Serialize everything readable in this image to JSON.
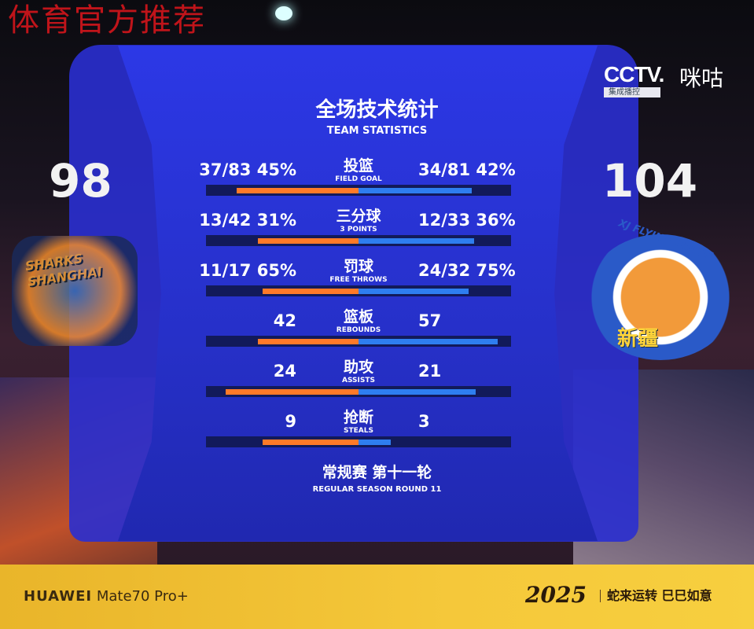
{
  "watermark": "体育官方推荐",
  "broadcaster": {
    "logo": "CCTV.",
    "sub": "集成播控",
    "partner": "咪咕"
  },
  "header": {
    "title_cn": "全场技术统计",
    "title_en": "TEAM STATISTICS"
  },
  "teams": {
    "home": {
      "score": "98",
      "logo_text": "SHARKS SHANGHAI",
      "bar_color": "#ff7a28"
    },
    "away": {
      "score": "104",
      "logo_text": "XJ FLYING TIGERS",
      "logo_cn": "新疆",
      "bar_color": "#2e7ef0"
    }
  },
  "stats": [
    {
      "cn": "投篮",
      "en": "FIELD GOAL",
      "left": "37/83  45%",
      "right": "34/81  42%",
      "left_fill": 0.8,
      "right_fill": 0.74
    },
    {
      "cn": "三分球",
      "en": "3 POINTS",
      "left": "13/42  31%",
      "right": "12/33  36%",
      "left_fill": 0.66,
      "right_fill": 0.76
    },
    {
      "cn": "罚球",
      "en": "FREE THROWS",
      "left": "11/17  65%",
      "right": "24/32  75%",
      "left_fill": 0.63,
      "right_fill": 0.72
    },
    {
      "cn": "篮板",
      "en": "REBOUNDS",
      "left": "42",
      "right": "57",
      "left_fill": 0.66,
      "right_fill": 0.91
    },
    {
      "cn": "助攻",
      "en": "ASSISTS",
      "left": "24",
      "right": "21",
      "left_fill": 0.87,
      "right_fill": 0.77
    },
    {
      "cn": "抢断",
      "en": "STEALS",
      "left": "9",
      "right": "3",
      "left_fill": 0.63,
      "right_fill": 0.21
    }
  ],
  "footer": {
    "round_cn": "常规赛 第十一轮",
    "round_en": "REGULAR SEASON ROUND 11"
  },
  "banner": {
    "brand": "HUAWEI",
    "model": "Mate70 Pro+",
    "year": "2025",
    "slogan": "蛇来运转  巳巳如意"
  }
}
